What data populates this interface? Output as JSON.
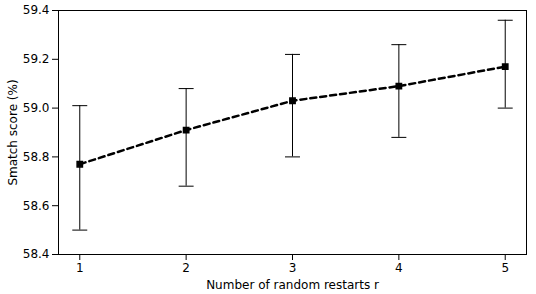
{
  "chart_data": {
    "type": "line",
    "x_label": "Number of random restarts r",
    "y_label": "Smatch score (%)",
    "x": [
      1,
      2,
      3,
      4,
      5
    ],
    "values": [
      58.77,
      58.91,
      59.03,
      59.09,
      59.17
    ],
    "error_low": [
      58.5,
      58.68,
      58.8,
      58.88,
      59.0
    ],
    "error_high": [
      59.01,
      59.08,
      59.22,
      59.26,
      59.36
    ],
    "color": "#000000",
    "marker": "square",
    "line_style": "dashed",
    "xlim": [
      0.8,
      5.2
    ],
    "xticks": [
      1,
      2,
      3,
      4,
      5
    ],
    "ylim": [
      58.4,
      59.4
    ],
    "yticks": [
      58.4,
      58.6,
      58.8,
      {
        "value": 59,
        "label": "59.0"
      },
      59.2,
      59.4
    ],
    "grid": false
  }
}
